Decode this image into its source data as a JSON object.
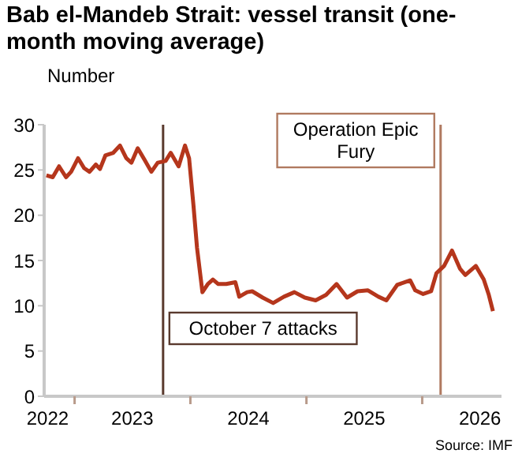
{
  "chart_data": {
    "type": "line",
    "title": "Bab el-Mandeb Strait: vessel transit (one-month moving average)",
    "ylabel": "Number",
    "annotations": [
      "Source: IMF"
    ],
    "x": [
      "2022-10-04",
      "2022-10-24",
      "2022-11-13",
      "2022-12-05",
      "2022-12-21",
      "2023-01-12",
      "2023-01-31",
      "2023-02-17",
      "2023-03-09",
      "2023-03-22",
      "2023-04-08",
      "2023-05-03",
      "2023-05-24",
      "2023-06-13",
      "2023-06-29",
      "2023-07-19",
      "2023-08-10",
      "2023-08-31",
      "2023-09-20",
      "2023-10-15",
      "2023-10-31",
      "2023-11-25",
      "2023-12-15",
      "2023-12-28",
      "2024-01-11",
      "2024-01-22",
      "2024-02-08",
      "2024-02-25",
      "2024-03-12",
      "2024-03-29",
      "2024-04-23",
      "2024-05-22",
      "2024-06-03",
      "2024-06-28",
      "2024-07-14",
      "2024-08-16",
      "2024-09-18",
      "2024-10-22",
      "2024-11-24",
      "2024-12-27",
      "2025-01-30",
      "2025-03-04",
      "2025-04-06",
      "2025-05-09",
      "2025-06-11",
      "2025-07-14",
      "2025-08-16",
      "2025-09-10",
      "2025-10-14",
      "2025-11-24",
      "2025-12-10",
      "2026-01-04",
      "2026-01-29",
      "2026-02-15",
      "2026-03-11",
      "2026-04-05",
      "2026-04-30",
      "2026-05-17",
      "2026-06-19",
      "2026-07-14",
      "2026-07-30",
      "2026-08-12"
    ],
    "series": [
      {
        "color": "#b5361c",
        "values": [
          24.4,
          24.2,
          25.4,
          24.2,
          24.8,
          26.3,
          25.2,
          24.8,
          25.6,
          25.1,
          26.6,
          26.9,
          27.7,
          26.3,
          25.8,
          27.4,
          26.1,
          24.8,
          25.8,
          26.0,
          26.9,
          25.4,
          27.7,
          26.3,
          21.0,
          16.4,
          11.5,
          12.4,
          12.9,
          12.4,
          12.4,
          12.6,
          11.0,
          11.5,
          11.6,
          10.9,
          10.3,
          11.0,
          11.5,
          10.9,
          10.6,
          11.2,
          12.4,
          10.9,
          11.6,
          11.7,
          11.0,
          10.6,
          12.3,
          12.8,
          11.7,
          11.3,
          11.6,
          13.6,
          14.4,
          16.1,
          14.1,
          13.4,
          14.4,
          12.9,
          11.2,
          9.4
        ]
      }
    ],
    "xlim": [
      "2022-09-27",
      "2026-09-08"
    ],
    "xticks": [
      {
        "value": "2022-10-08",
        "label": "2022"
      },
      {
        "value": "2023-01-01",
        "label": null
      },
      {
        "value": "2023-07-02",
        "label": "2023"
      },
      {
        "value": "2024-01-01",
        "label": null
      },
      {
        "value": "2024-07-02",
        "label": "2024"
      },
      {
        "value": "2025-01-01",
        "label": null
      },
      {
        "value": "2025-07-02",
        "label": "2025"
      },
      {
        "value": "2026-01-01",
        "label": null
      },
      {
        "value": "2026-07-02",
        "label": "2026"
      }
    ],
    "ylim": [
      0,
      30
    ],
    "yticks": [
      0,
      5,
      10,
      15,
      20,
      25,
      30
    ],
    "grid": false,
    "legend": false,
    "marker": "none",
    "line_style": "solid",
    "ref_lines": [
      {
        "axis": "x",
        "value": "2023-10-07",
        "label": "October 7 attacks",
        "color": "#5a3a2e"
      },
      {
        "axis": "x",
        "value": "2026-02-28",
        "label": "Operation Epic Fury",
        "color": "#b07a60"
      }
    ]
  }
}
